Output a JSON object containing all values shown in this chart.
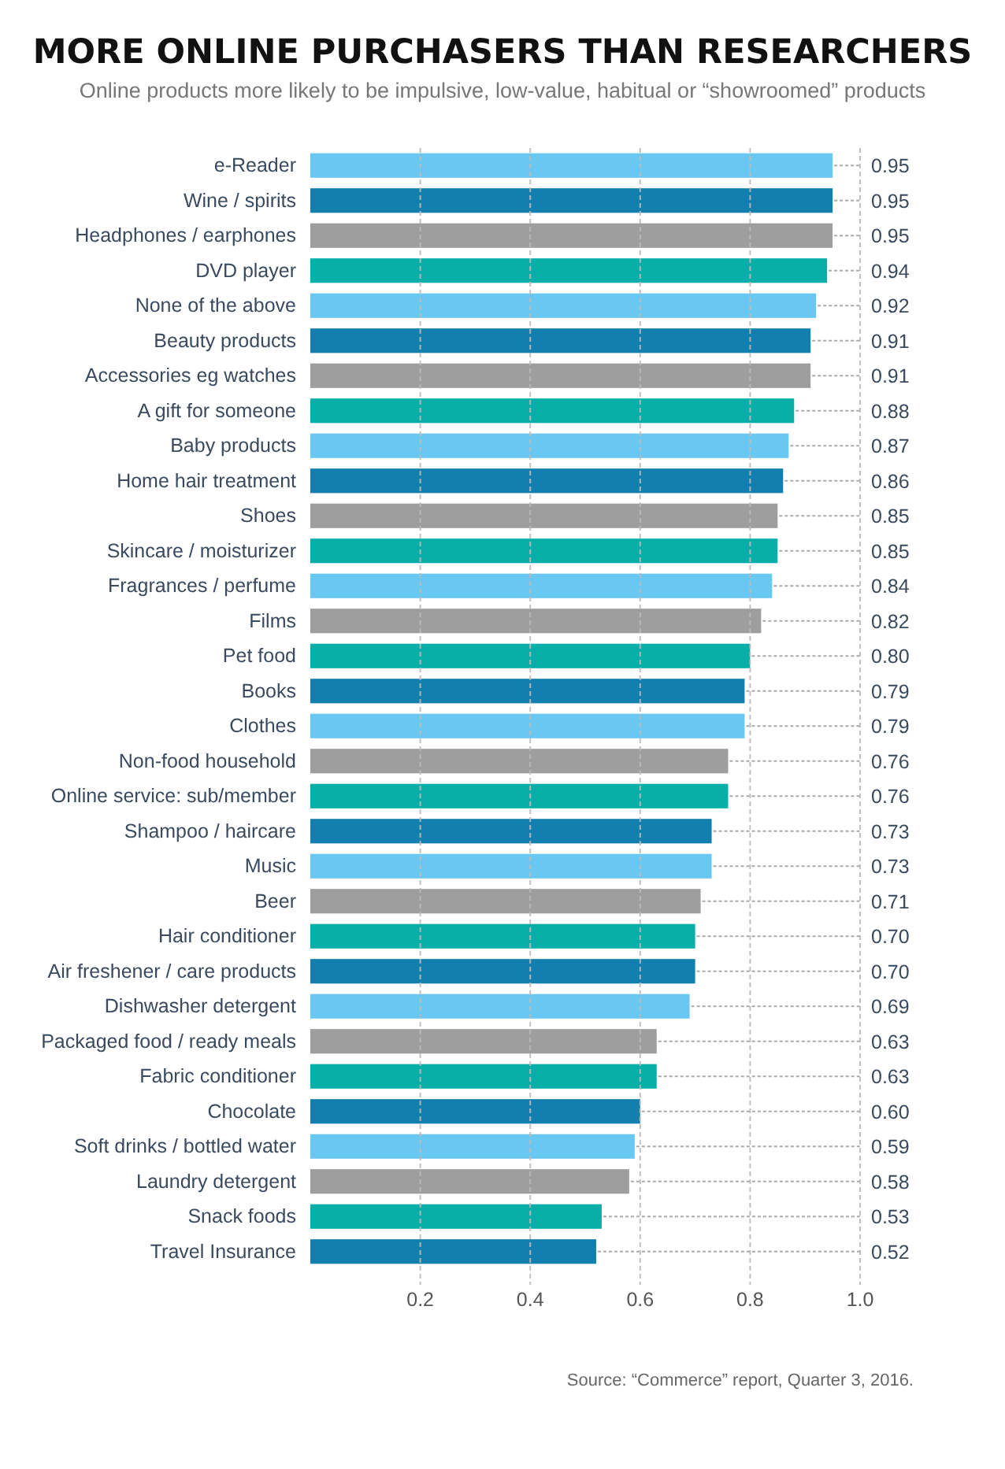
{
  "chart_data": {
    "type": "bar",
    "orientation": "horizontal",
    "title": "MORE ONLINE PURCHASERS THAN RESEARCHERS",
    "subtitle": "Online products more likely to be impulsive, low-value, habitual or “showroomed” products",
    "categories": [
      "e-Reader",
      "Wine / spirits",
      "Headphones / earphones",
      "DVD player",
      "None of the above",
      "Beauty products",
      "Accessories eg watches",
      "A gift for someone",
      "Baby products",
      "Home hair treatment",
      "Shoes",
      "Skincare / moisturizer",
      "Fragrances / perfume",
      "Films",
      "Pet food",
      "Books",
      "Clothes",
      "Non-food household",
      "Online service: sub/member",
      "Shampoo / haircare",
      "Music",
      "Beer",
      "Hair conditioner",
      "Air freshener / care products",
      "Dishwasher detergent",
      "Packaged food / ready meals",
      "Fabric conditioner",
      "Chocolate",
      "Soft drinks / bottled water",
      "Laundry detergent",
      "Snack foods",
      "Travel Insurance"
    ],
    "values": [
      0.95,
      0.95,
      0.95,
      0.94,
      0.92,
      0.91,
      0.91,
      0.88,
      0.87,
      0.86,
      0.85,
      0.85,
      0.84,
      0.82,
      0.8,
      0.79,
      0.79,
      0.76,
      0.76,
      0.73,
      0.73,
      0.71,
      0.7,
      0.7,
      0.69,
      0.63,
      0.63,
      0.6,
      0.59,
      0.58,
      0.53,
      0.52
    ],
    "value_labels": [
      "0.95",
      "0.95",
      "0.95",
      "0.94",
      "0.92",
      "0.91",
      "0.91",
      "0.88",
      "0.87",
      "0.86",
      "0.85",
      "0.85",
      "0.84",
      "0.82",
      "0.80",
      "0.79",
      "0.79",
      "0.76",
      "0.76",
      "0.73",
      "0.73",
      "0.71",
      "0.70",
      "0.70",
      "0.69",
      "0.63",
      "0.63",
      "0.60",
      "0.59",
      "0.58",
      "0.53",
      "0.52"
    ],
    "colors": [
      "#68c8f2",
      "#137fae",
      "#9e9e9e",
      "#07afa8",
      "#68c8f2",
      "#137fae",
      "#9e9e9e",
      "#07afa8",
      "#68c8f2",
      "#137fae",
      "#9e9e9e",
      "#07afa8",
      "#68c8f2",
      "#9e9e9e",
      "#07afa8",
      "#137fae",
      "#68c8f2",
      "#9e9e9e",
      "#07afa8",
      "#137fae",
      "#68c8f2",
      "#9e9e9e",
      "#07afa8",
      "#137fae",
      "#68c8f2",
      "#9e9e9e",
      "#07afa8",
      "#137fae",
      "#68c8f2",
      "#9e9e9e",
      "#07afa8",
      "#137fae"
    ],
    "xlim": [
      0,
      1
    ],
    "xticks": [
      0.2,
      0.4,
      0.6,
      0.8,
      {
        "value": 1,
        "label": "1.0"
      }
    ],
    "grid": "x",
    "annotations": [
      "Source: “Commerce” report, Quarter 3, 2016."
    ]
  }
}
